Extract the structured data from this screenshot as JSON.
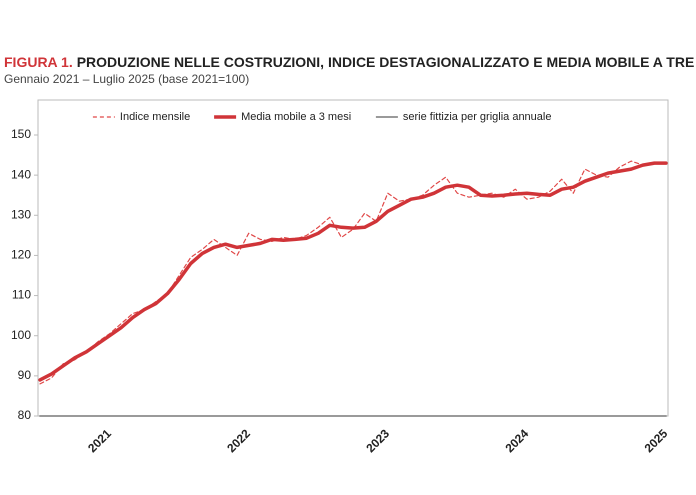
{
  "chart_data": {
    "type": "line",
    "title_prefix": "FIGURA 1.",
    "title": "PRODUZIONE NELLE COSTRUZIONI, INDICE DESTAGIONALIZZATO E MEDIA MOBILE A TRE MESI",
    "subtitle": "Gennaio 2021 – Luglio 2025 (base 2021=100)",
    "categories": [
      null,
      null,
      null,
      null,
      null,
      null,
      "2021",
      null,
      null,
      null,
      null,
      null,
      null,
      null,
      null,
      null,
      null,
      null,
      "2022",
      null,
      null,
      null,
      null,
      null,
      null,
      null,
      null,
      null,
      null,
      null,
      "2023",
      null,
      null,
      null,
      null,
      null,
      null,
      null,
      null,
      null,
      null,
      null,
      "2024",
      null,
      null,
      null,
      null,
      null,
      null,
      null,
      null,
      null,
      null,
      null,
      "2025"
    ],
    "series": [
      {
        "name": "Indice mensile",
        "color": "#e04848",
        "style": "dashed",
        "values": [
          88,
          89.5,
          93,
          94,
          96,
          98.5,
          100.5,
          103,
          105.5,
          106.5,
          108.5,
          110.5,
          115,
          119.5,
          121.5,
          124,
          122,
          120,
          125.5,
          124,
          123.5,
          124.5,
          124,
          125,
          127,
          129.5,
          124.5,
          126.5,
          130.5,
          128.5,
          135.5,
          133.5,
          134,
          135,
          137.5,
          139.5,
          135.5,
          134.5,
          135,
          135.5,
          134.5,
          136.5,
          134,
          134.5,
          136,
          139,
          135.5,
          141.5,
          140,
          139.5,
          142,
          143.5,
          142.5,
          143,
          143
        ]
      },
      {
        "name": "Media mobile a 3 mesi",
        "color": "#d03438",
        "style": "thick",
        "values": [
          89,
          90.5,
          92.5,
          94.5,
          96,
          98,
          100,
          102,
          104.5,
          106.5,
          108,
          110.5,
          114,
          118,
          120.5,
          122,
          122.8,
          122,
          122.5,
          123,
          124,
          123.8,
          124,
          124.3,
          125.5,
          127.5,
          127,
          126.8,
          127,
          128.5,
          131,
          132.5,
          134,
          134.5,
          135.5,
          137,
          137.5,
          137,
          135,
          134.8,
          135,
          135.3,
          135.5,
          135.2,
          135,
          136.5,
          137,
          138.5,
          139.5,
          140.5,
          141,
          141.5,
          142.5,
          143,
          143
        ]
      },
      {
        "name": "serie fittizia per griglia annuale",
        "color": "#9a9a9a",
        "style": "solid",
        "values": [
          80,
          80,
          80,
          80,
          80,
          80,
          80,
          80,
          80,
          80,
          80,
          80,
          80,
          80,
          80,
          80,
          80,
          80,
          80,
          80,
          80,
          80,
          80,
          80,
          80,
          80,
          80,
          80,
          80,
          80,
          80,
          80,
          80,
          80,
          80,
          80,
          80,
          80,
          80,
          80,
          80,
          80,
          80,
          80,
          80,
          80,
          80,
          80,
          80,
          80,
          80,
          80,
          80,
          80,
          80
        ]
      }
    ],
    "ylim": [
      80,
      150
    ],
    "yticks": [
      80,
      90,
      100,
      110,
      120,
      130,
      140,
      150
    ],
    "legend": "top"
  }
}
